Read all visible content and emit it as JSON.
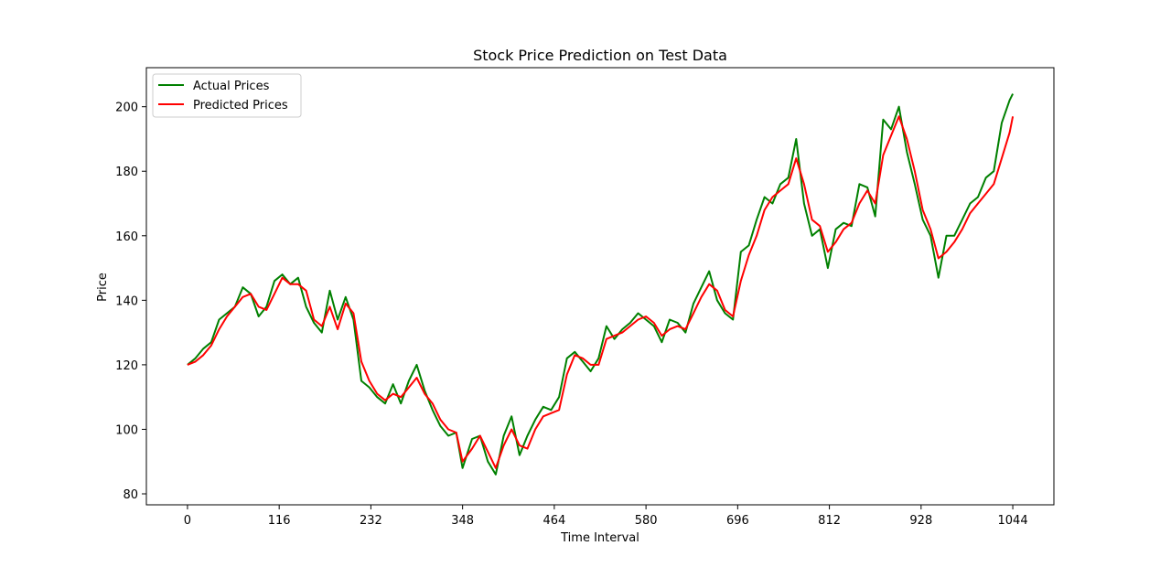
{
  "chart_data": {
    "type": "line",
    "title": "Stock Price Prediction on Test Data",
    "xlabel": "Time Interval",
    "ylabel": "Price",
    "xlim": [
      -52,
      1096
    ],
    "ylim": [
      76.6,
      212.1
    ],
    "xticks": [
      0,
      116,
      232,
      348,
      464,
      580,
      696,
      812,
      928,
      1044
    ],
    "yticks": [
      80,
      100,
      120,
      140,
      160,
      180,
      200
    ],
    "grid": false,
    "legend_position": "upper left",
    "series": [
      {
        "name": "Actual Prices",
        "color": "#008000",
        "x": [
          0,
          10,
          20,
          30,
          40,
          50,
          60,
          70,
          80,
          90,
          100,
          110,
          120,
          130,
          140,
          150,
          160,
          170,
          180,
          190,
          200,
          210,
          220,
          230,
          240,
          250,
          260,
          270,
          280,
          290,
          300,
          310,
          320,
          330,
          340,
          348,
          360,
          370,
          380,
          390,
          400,
          410,
          420,
          430,
          440,
          450,
          460,
          470,
          480,
          490,
          500,
          510,
          520,
          530,
          540,
          550,
          560,
          570,
          580,
          590,
          600,
          610,
          620,
          630,
          640,
          650,
          660,
          670,
          680,
          690,
          700,
          710,
          720,
          730,
          740,
          750,
          760,
          770,
          780,
          790,
          800,
          810,
          820,
          830,
          840,
          850,
          860,
          870,
          880,
          890,
          900,
          910,
          920,
          930,
          940,
          950,
          960,
          970,
          980,
          990,
          1000,
          1010,
          1020,
          1030,
          1040,
          1044
        ],
        "values": [
          120,
          122,
          125,
          127,
          134,
          136,
          138,
          144,
          142,
          135,
          138,
          146,
          148,
          145,
          147,
          138,
          133,
          130,
          143,
          134,
          141,
          134,
          115,
          113,
          110,
          108,
          114,
          108,
          115,
          120,
          112,
          106,
          101,
          98,
          99,
          88,
          97,
          98,
          90,
          86,
          98,
          104,
          92,
          98,
          103,
          107,
          106,
          110,
          122,
          124,
          121,
          118,
          122,
          132,
          128,
          131,
          133,
          136,
          134,
          132,
          127,
          134,
          133,
          130,
          139,
          144,
          149,
          140,
          136,
          134,
          155,
          157,
          165,
          172,
          170,
          176,
          178,
          190,
          170,
          160,
          162,
          150,
          162,
          164,
          163,
          176,
          175,
          166,
          196,
          193,
          200,
          186,
          176,
          165,
          160,
          147,
          160,
          160,
          165,
          170,
          172,
          178,
          180,
          195,
          202,
          204
        ]
      },
      {
        "name": "Predicted Prices",
        "color": "#ff0000",
        "x": [
          0,
          10,
          20,
          30,
          40,
          50,
          60,
          70,
          80,
          90,
          100,
          110,
          120,
          130,
          140,
          150,
          160,
          170,
          180,
          190,
          200,
          210,
          220,
          230,
          240,
          250,
          260,
          270,
          280,
          290,
          300,
          310,
          320,
          330,
          340,
          348,
          360,
          370,
          380,
          390,
          400,
          410,
          420,
          430,
          440,
          450,
          460,
          470,
          480,
          490,
          500,
          510,
          520,
          530,
          540,
          550,
          560,
          570,
          580,
          590,
          600,
          610,
          620,
          630,
          640,
          650,
          660,
          670,
          680,
          690,
          700,
          710,
          720,
          730,
          740,
          750,
          760,
          770,
          780,
          790,
          800,
          810,
          820,
          830,
          840,
          850,
          860,
          870,
          880,
          890,
          900,
          910,
          920,
          930,
          940,
          950,
          960,
          970,
          980,
          990,
          1000,
          1010,
          1020,
          1030,
          1040,
          1044
        ],
        "values": [
          120,
          121,
          123,
          126,
          131,
          135,
          138,
          141,
          142,
          138,
          137,
          142,
          147,
          145,
          145,
          143,
          134,
          132,
          138,
          131,
          139,
          136,
          121,
          115,
          111,
          109,
          111,
          110,
          113,
          116,
          111,
          108,
          103,
          100,
          99,
          90,
          94,
          98,
          93,
          88,
          95,
          100,
          95,
          94,
          100,
          104,
          105,
          106,
          117,
          123,
          122,
          120,
          120,
          128,
          129,
          130,
          132,
          134,
          135,
          133,
          129,
          131,
          132,
          131,
          136,
          141,
          145,
          143,
          137,
          135,
          146,
          154,
          160,
          168,
          172,
          174,
          176,
          184,
          176,
          165,
          163,
          155,
          158,
          162,
          164,
          170,
          174,
          170,
          185,
          191,
          197,
          190,
          180,
          168,
          162,
          153,
          155,
          158,
          162,
          167,
          170,
          173,
          176,
          184,
          192,
          197
        ]
      }
    ]
  }
}
